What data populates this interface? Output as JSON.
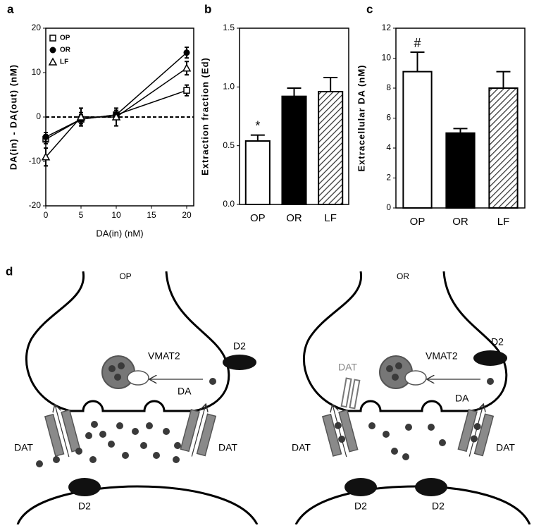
{
  "chart_data": [
    {
      "type": "scatter",
      "label": "a",
      "xlabel": "DA(in) (nM)",
      "ylabel": "DA(in) - DA(out) (nM)",
      "x": [
        0,
        5,
        10,
        20
      ],
      "xlim": [
        0,
        21
      ],
      "xticks": [
        0,
        5,
        10,
        15,
        20
      ],
      "ylim": [
        -20,
        20
      ],
      "yticks": [
        -20,
        -10,
        0,
        10,
        20
      ],
      "series": [
        {
          "name": "OP",
          "color": "#000000",
          "marker": "square",
          "values": [
            -5,
            -0.5,
            0.5,
            6
          ],
          "errors": [
            1,
            1.5,
            1,
            1.2
          ]
        },
        {
          "name": "OR",
          "color": "#000000",
          "marker": "circle",
          "values": [
            -4.5,
            -0.5,
            0.5,
            14.5
          ],
          "errors": [
            1,
            1,
            1,
            1.2
          ]
        },
        {
          "name": "LF",
          "color": "#000000",
          "marker": "triangle",
          "values": [
            -9,
            0,
            0,
            11
          ],
          "errors": [
            2,
            2,
            2,
            1.5
          ]
        }
      ]
    },
    {
      "type": "bar",
      "label": "b",
      "ylabel": "Extraction fraction (Ed)",
      "annotation": "*",
      "categories": [
        "OP",
        "OR",
        "LF"
      ],
      "values": [
        0.54,
        0.92,
        0.96
      ],
      "errors": [
        0.05,
        0.07,
        0.12
      ],
      "colors": [
        "#ffffff",
        "#000000",
        "#ffffff"
      ],
      "hatch": [
        false,
        false,
        true
      ],
      "ylim": [
        0,
        1.5
      ],
      "yticks": [
        {
          "value": 0,
          "label": "0.0"
        },
        0.5,
        {
          "value": 1,
          "label": "1.0"
        },
        1.5
      ]
    },
    {
      "type": "bar",
      "label": "c",
      "ylabel": "Extracellular DA (nM)",
      "annotation": "#",
      "categories": [
        "OP",
        "OR",
        "LF"
      ],
      "values": [
        9.1,
        5.0,
        8.0
      ],
      "errors": [
        1.3,
        0.3,
        1.1
      ],
      "colors": [
        "#ffffff",
        "#000000",
        "#ffffff"
      ],
      "hatch": [
        false,
        false,
        true
      ],
      "ylim": [
        0,
        12
      ],
      "yticks": [
        0,
        2,
        4,
        6,
        8,
        10,
        12
      ]
    }
  ],
  "diagram": {
    "label": "d",
    "panels": [
      {
        "title": "OP",
        "vmat": "VMAT2",
        "da": "DA",
        "d2_pre": "D2",
        "dat_left": "DAT",
        "dat_right": "DAT",
        "d2_post": [
          "D2"
        ]
      },
      {
        "title": "OR",
        "dat_internal": "DAT",
        "vmat": "VMAT2",
        "da": "DA",
        "d2_pre": "D2",
        "dat_left": "DAT",
        "dat_right": "DAT",
        "d2_post": [
          "D2",
          "D2"
        ]
      }
    ]
  }
}
